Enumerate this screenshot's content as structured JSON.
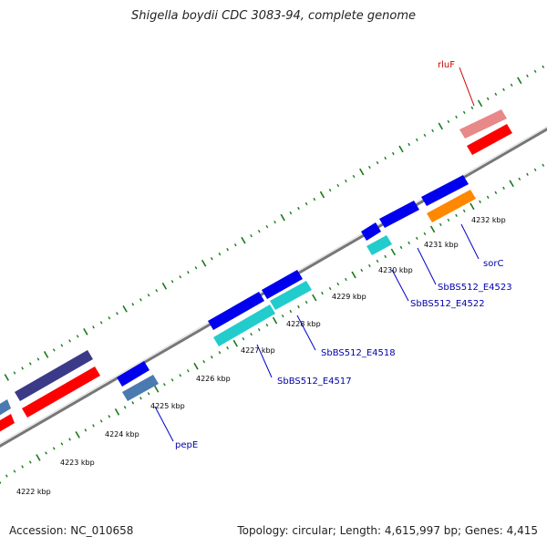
{
  "title": "Shigella boydii CDC 3083-94, complete genome",
  "footer": {
    "accession": "Accession: NC_010658",
    "topology": "Topology: circular; Length: 4,615,997 bp; Genes: 4,415"
  },
  "ticks": [
    {
      "label": "4222 kbp"
    },
    {
      "label": "4223 kbp"
    },
    {
      "label": "4224 kbp"
    },
    {
      "label": "4225 kbp"
    },
    {
      "label": "4226 kbp"
    },
    {
      "label": "4227 kbp"
    },
    {
      "label": "4228 kbp"
    },
    {
      "label": "4229 kbp"
    },
    {
      "label": "4230 kbp"
    },
    {
      "label": "4231 kbp"
    },
    {
      "label": "4232 kbp"
    }
  ],
  "gene_labels": [
    {
      "text": "rluF",
      "color": "#cc0000"
    },
    {
      "text": "sorC",
      "color": "#0000aa"
    },
    {
      "text": "SbBS512_E4523",
      "color": "#0000aa"
    },
    {
      "text": "SbBS512_E4522",
      "color": "#0000aa"
    },
    {
      "text": "SbBS512_E4518",
      "color": "#0000aa"
    },
    {
      "text": "SbBS512_E4517",
      "color": "#0000aa"
    },
    {
      "text": "pepE",
      "color": "#0000aa"
    }
  ],
  "colors": {
    "backbone": "#888888",
    "tick_green": "#1a7a1a",
    "blue": "#0000ee",
    "red": "#ff0000",
    "pink": "#e88888",
    "cyan": "#22cccc",
    "orange": "#ff8800",
    "steelblue": "#4a7ab0",
    "slate": "#3a3a88"
  }
}
